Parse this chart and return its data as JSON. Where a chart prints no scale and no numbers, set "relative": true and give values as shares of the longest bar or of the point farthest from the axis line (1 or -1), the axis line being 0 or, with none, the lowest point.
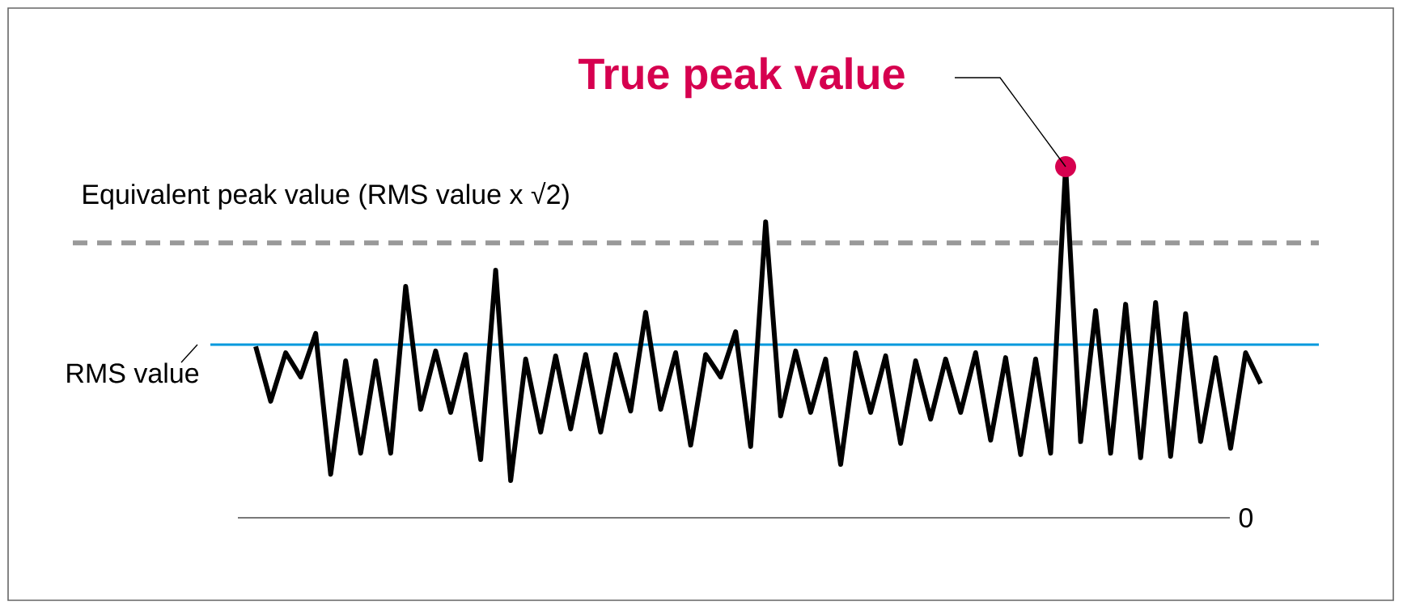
{
  "chart_data": {
    "type": "line",
    "relative": true,
    "categories": [
      null,
      null,
      null,
      null,
      null,
      null,
      null,
      null,
      null,
      null,
      null,
      null,
      null,
      null,
      null,
      null,
      null,
      null,
      null,
      null,
      null,
      null,
      null,
      null,
      null,
      null,
      null,
      null,
      null,
      null,
      null,
      null,
      null,
      null,
      null,
      null,
      null,
      null,
      null,
      null,
      null,
      null,
      null,
      null,
      null,
      null,
      null,
      null,
      null,
      null,
      null,
      null,
      null,
      null,
      null,
      null,
      null,
      null,
      null,
      null,
      null,
      null,
      null,
      null,
      null,
      null,
      null,
      null
    ],
    "series": [
      {
        "color": "#000000",
        "values": [
          0.488,
          0.332,
          0.47,
          0.401,
          0.525,
          0.124,
          0.447,
          0.184,
          0.447,
          0.184,
          0.659,
          0.309,
          0.475,
          0.3,
          0.465,
          0.166,
          0.705,
          0.106,
          0.452,
          0.244,
          0.461,
          0.253,
          0.465,
          0.244,
          0.465,
          0.304,
          0.585,
          0.309,
          0.47,
          0.207,
          0.465,
          0.401,
          0.53,
          0.203,
          0.843,
          0.29,
          0.475,
          0.3,
          0.452,
          0.152,
          0.47,
          0.3,
          0.461,
          0.212,
          0.447,
          0.281,
          0.452,
          0.3,
          0.47,
          0.221,
          0.456,
          0.18,
          0.452,
          0.184,
          1,
          0.217,
          0.59,
          0.184,
          0.608,
          0.171,
          0.613,
          0.175,
          0.581,
          0.217,
          0.456,
          0.198,
          0.47,
          0.382
        ]
      }
    ],
    "ref_lines": [
      {
        "axis": "y",
        "value": 0.493,
        "label": "RMS value",
        "color": "#0099dd",
        "line_style": "solid"
      },
      {
        "axis": "y",
        "value": 0.783,
        "label": "Equivalent peak value (RMS value x √2)",
        "color": "#999999",
        "line_style": "dashed"
      }
    ],
    "annotations": [
      "True peak value",
      "0"
    ]
  }
}
